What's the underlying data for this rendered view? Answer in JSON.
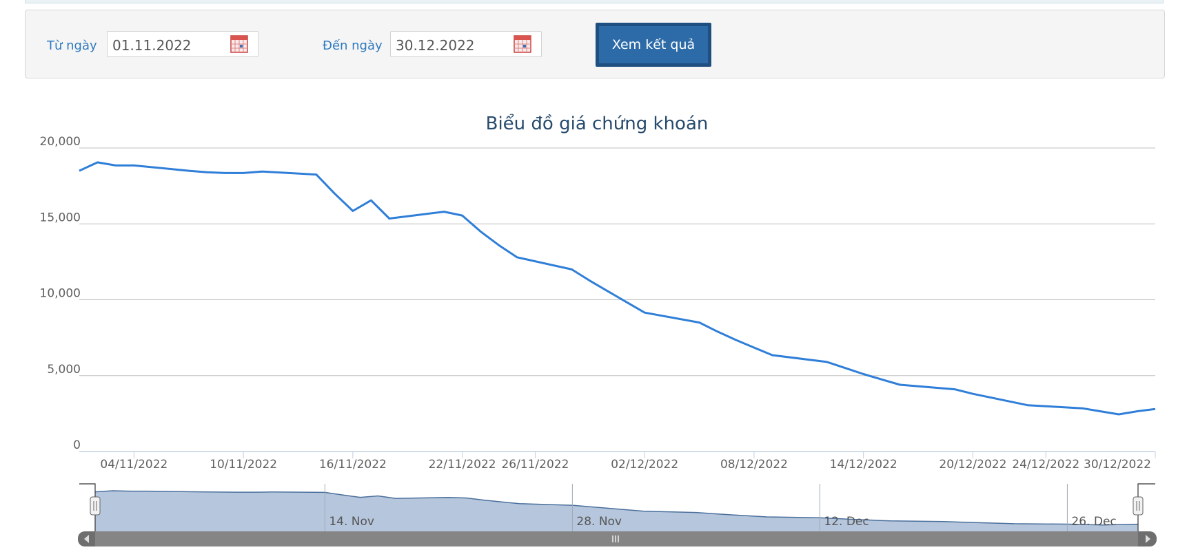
{
  "filter": {
    "from_label": "Từ ngày",
    "from_value": "01.11.2022",
    "to_label": "Đến ngày",
    "to_value": "30.12.2022",
    "submit_label": "Xem kết quả"
  },
  "colors": {
    "line": "#2f7ed8",
    "accent": "#2f7abf",
    "button": "#2d6ba8",
    "navigator_fill": "#b6c6dc"
  },
  "chart_data": {
    "type": "line",
    "title": "Biểu đồ giá chứng khoán",
    "xlabel": "",
    "ylabel": "",
    "ylim": [
      0,
      20000
    ],
    "yticks": [
      "20,000",
      "15,000",
      "10,000",
      "5,000",
      "0"
    ],
    "ytick_values": [
      20000,
      15000,
      10000,
      5000,
      0
    ],
    "xlim": [
      "2022-11-01",
      "2022-12-30"
    ],
    "xticks": [
      {
        "date": "2022-11-04",
        "label": "04/11/2022"
      },
      {
        "date": "2022-11-10",
        "label": "10/11/2022"
      },
      {
        "date": "2022-11-16",
        "label": "16/11/2022"
      },
      {
        "date": "2022-11-22",
        "label": "22/11/2022"
      },
      {
        "date": "2022-11-26",
        "label": "26/11/2022"
      },
      {
        "date": "2022-12-02",
        "label": "02/12/2022"
      },
      {
        "date": "2022-12-08",
        "label": "08/12/2022"
      },
      {
        "date": "2022-12-14",
        "label": "14/12/2022"
      },
      {
        "date": "2022-12-20",
        "label": "20/12/2022"
      },
      {
        "date": "2022-12-24",
        "label": "24/12/2022"
      },
      {
        "date": "2022-12-30",
        "label": "30/12/2022"
      }
    ],
    "grid": true,
    "series": [
      {
        "x": [
          "2022-11-01",
          "2022-11-02",
          "2022-11-03",
          "2022-11-04",
          "2022-11-07",
          "2022-11-08",
          "2022-11-09",
          "2022-11-10",
          "2022-11-11",
          "2022-11-14",
          "2022-11-15",
          "2022-11-16",
          "2022-11-17",
          "2022-11-18",
          "2022-11-21",
          "2022-11-22",
          "2022-11-23",
          "2022-11-24",
          "2022-11-25",
          "2022-11-28",
          "2022-11-29",
          "2022-11-30",
          "2022-12-01",
          "2022-12-02",
          "2022-12-05",
          "2022-12-06",
          "2022-12-07",
          "2022-12-08",
          "2022-12-09",
          "2022-12-12",
          "2022-12-13",
          "2022-12-14",
          "2022-12-15",
          "2022-12-16",
          "2022-12-19",
          "2022-12-20",
          "2022-12-21",
          "2022-12-22",
          "2022-12-23",
          "2022-12-26",
          "2022-12-27",
          "2022-12-28",
          "2022-12-29",
          "2022-12-30"
        ],
        "values": [
          18500,
          19050,
          18850,
          18850,
          18500,
          18400,
          18350,
          18350,
          18450,
          18250,
          17000,
          15850,
          16550,
          15350,
          15800,
          15550,
          14500,
          13600,
          12800,
          12000,
          11250,
          10550,
          9850,
          9150,
          8500,
          7900,
          7350,
          6850,
          6350,
          5900,
          5500,
          5100,
          4750,
          4400,
          4100,
          3800,
          3550,
          3300,
          3050,
          2850,
          2650,
          2450,
          2650,
          2800
        ]
      }
    ],
    "navigator": {
      "labels": [
        {
          "date": "2022-11-14",
          "label": "14. Nov"
        },
        {
          "date": "2022-11-28",
          "label": "28. Nov"
        },
        {
          "date": "2022-12-12",
          "label": "12. Dec"
        },
        {
          "date": "2022-12-26",
          "label": "26. Dec"
        }
      ]
    }
  }
}
